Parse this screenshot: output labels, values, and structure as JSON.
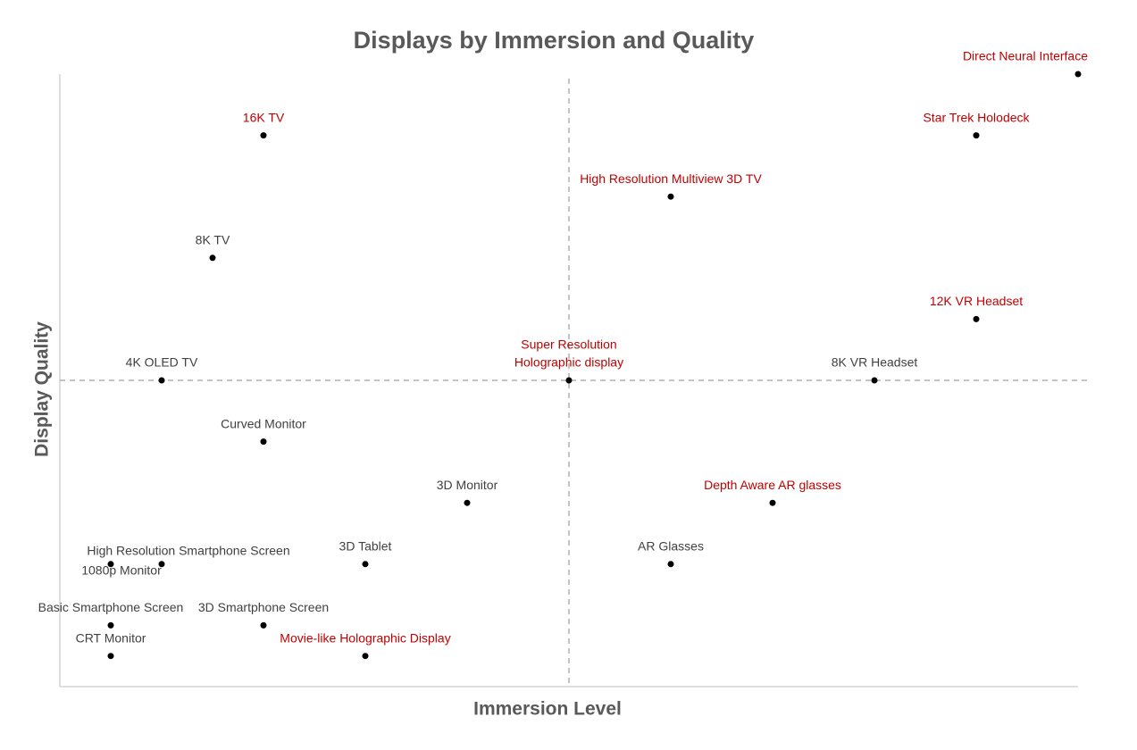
{
  "chart_data": {
    "type": "scatter",
    "title": "Displays by Immersion and Quality",
    "x_label": "Immersion Level",
    "y_label": "Display Quality",
    "xlim": [
      0,
      20
    ],
    "ylim": [
      0,
      10
    ],
    "quadrant_x": 10,
    "quadrant_y": 5,
    "point_color": "#000000",
    "axis_color": "#bfbfbf",
    "labels": [
      "Direct Neural Interface",
      "Star Trek Holodeck",
      "16K TV",
      "High Resolution Multiview 3D TV",
      "8K TV",
      "12K VR Headset",
      "4K OLED TV",
      [
        "Super Resolution",
        "Holographic display"
      ],
      "8K VR Headset",
      "Curved Monitor",
      "3D Monitor",
      "Depth Aware AR glasses",
      "High Resolution Smartphone Screen",
      "1080p Monitor",
      "3D Tablet",
      "AR Glasses",
      "Basic Smartphone Screen",
      "3D Smartphone Screen",
      "CRT Monitor",
      "Movie-like Holographic Display"
    ],
    "x": [
      20,
      18,
      4,
      12,
      3,
      18,
      2,
      10,
      16,
      4,
      8,
      14,
      2,
      1,
      6,
      12,
      1,
      4,
      1,
      6
    ],
    "y": [
      10,
      9,
      9,
      8,
      7,
      6,
      5,
      5,
      5,
      4,
      3,
      3,
      2,
      2,
      2,
      2,
      1,
      1,
      0.5,
      0.5
    ],
    "label_colors": [
      "#c00000",
      "#c00000",
      "#c00000",
      "#c00000",
      "#404040",
      "#c00000",
      "#404040",
      "#c00000",
      "#404040",
      "#404040",
      "#404040",
      "#c00000",
      "#404040",
      "#404040",
      "#404040",
      "#404040",
      "#404040",
      "#404040",
      "#404040",
      "#c00000"
    ]
  }
}
